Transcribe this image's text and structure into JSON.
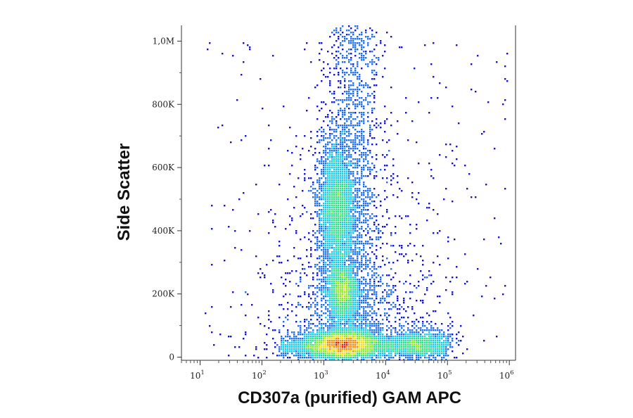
{
  "chart_data": {
    "type": "scatter",
    "style": "pseudocolor density dot plot",
    "xlabel": "CD307a (purified) GAM APC",
    "ylabel": "Side Scatter",
    "x_scale": "log",
    "xlim": [
      5,
      1260000
    ],
    "ylim": [
      -10000,
      1050000
    ],
    "x_ticks": [
      {
        "base": "10",
        "exp": "1",
        "value": 10
      },
      {
        "base": "10",
        "exp": "2",
        "value": 100
      },
      {
        "base": "10",
        "exp": "3",
        "value": 1000
      },
      {
        "base": "10",
        "exp": "4",
        "value": 10000
      },
      {
        "base": "10",
        "exp": "5",
        "value": 100000
      },
      {
        "base": "10",
        "exp": "6",
        "value": 1000000
      }
    ],
    "y_ticks": [
      {
        "label": "0",
        "value": 0
      },
      {
        "label": "200K",
        "value": 200000
      },
      {
        "label": "400K",
        "value": 400000
      },
      {
        "label": "600K",
        "value": 600000
      },
      {
        "label": "800K",
        "value": 800000
      },
      {
        "label": "1,0M",
        "value": 1000000
      }
    ],
    "populations": [
      {
        "x_center": 2000,
        "y_center": 40000,
        "x_spread_decades": 0.32,
        "y_spread": 22000,
        "relative_density": "highest"
      },
      {
        "x_center": 1600,
        "y_center": 470000,
        "x_spread_decades": 0.15,
        "y_spread": 110000,
        "relative_density": "high"
      },
      {
        "x_center": 2000,
        "y_center": 210000,
        "x_spread_decades": 0.13,
        "y_spread": 42000,
        "relative_density": "high"
      },
      {
        "x_center": 35000,
        "y_center": 45000,
        "x_spread_decades": 0.25,
        "y_spread": 22000,
        "relative_density": "medium"
      }
    ],
    "color_scale": [
      "#1515c8",
      "#1e6ef0",
      "#18c8e8",
      "#2ee08a",
      "#8ae828",
      "#f0e020",
      "#f08c10",
      "#e01a0a"
    ],
    "grid": false,
    "legend": "none"
  }
}
